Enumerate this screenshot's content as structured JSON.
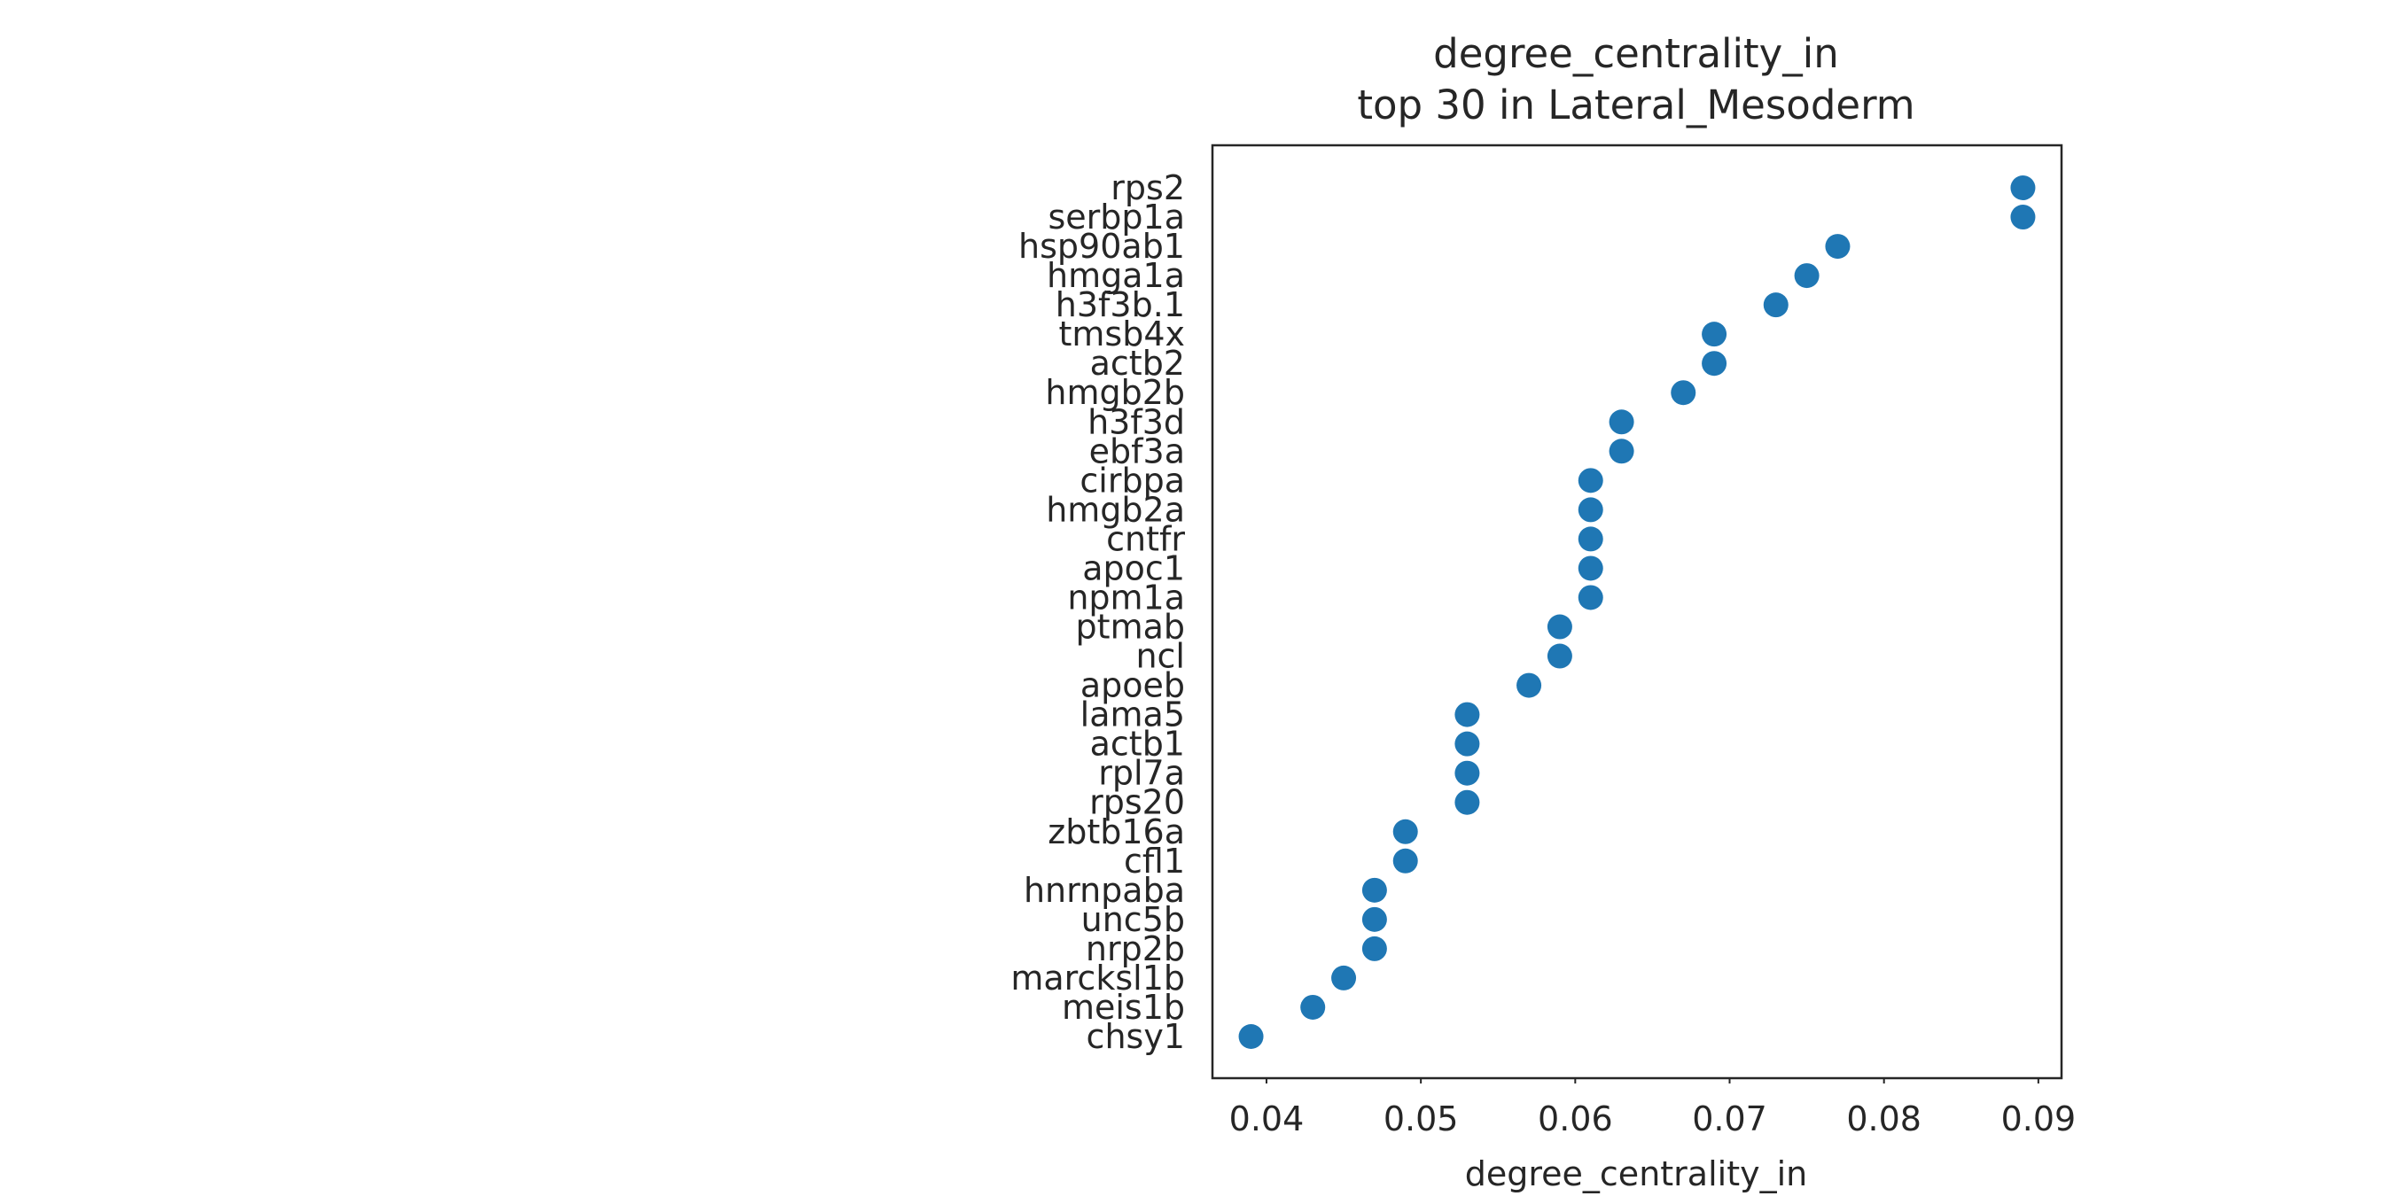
{
  "chart_data": {
    "type": "scatter",
    "title": "degree_centrality_in",
    "subtitle": "top 30 in Lateral_Mesoderm",
    "xlabel": "degree_centrality_in",
    "ylabel": "",
    "xlim": [
      0.0365,
      0.0915
    ],
    "xticks": [
      "0.04",
      "0.05",
      "0.06",
      "0.07",
      "0.08",
      "0.09"
    ],
    "grid": false,
    "marker_color": "#1f77b4",
    "categories": [
      "rps2",
      "serbp1a",
      "hsp90ab1",
      "hmga1a",
      "h3f3b.1",
      "tmsb4x",
      "actb2",
      "hmgb2b",
      "h3f3d",
      "ebf3a",
      "cirbpa",
      "hmgb2a",
      "cntfr",
      "apoc1",
      "npm1a",
      "ptmab",
      "ncl",
      "apoeb",
      "lama5",
      "actb1",
      "rpl7a",
      "rps20",
      "zbtb16a",
      "cfl1",
      "hnrnpaba",
      "unc5b",
      "nrp2b",
      "marcksl1b",
      "meis1b",
      "chsy1"
    ],
    "values": [
      0.089,
      0.089,
      0.077,
      0.075,
      0.073,
      0.069,
      0.069,
      0.067,
      0.063,
      0.063,
      0.061,
      0.061,
      0.061,
      0.061,
      0.061,
      0.059,
      0.059,
      0.057,
      0.053,
      0.053,
      0.053,
      0.053,
      0.049,
      0.049,
      0.047,
      0.047,
      0.047,
      0.045,
      0.043,
      0.039
    ]
  }
}
